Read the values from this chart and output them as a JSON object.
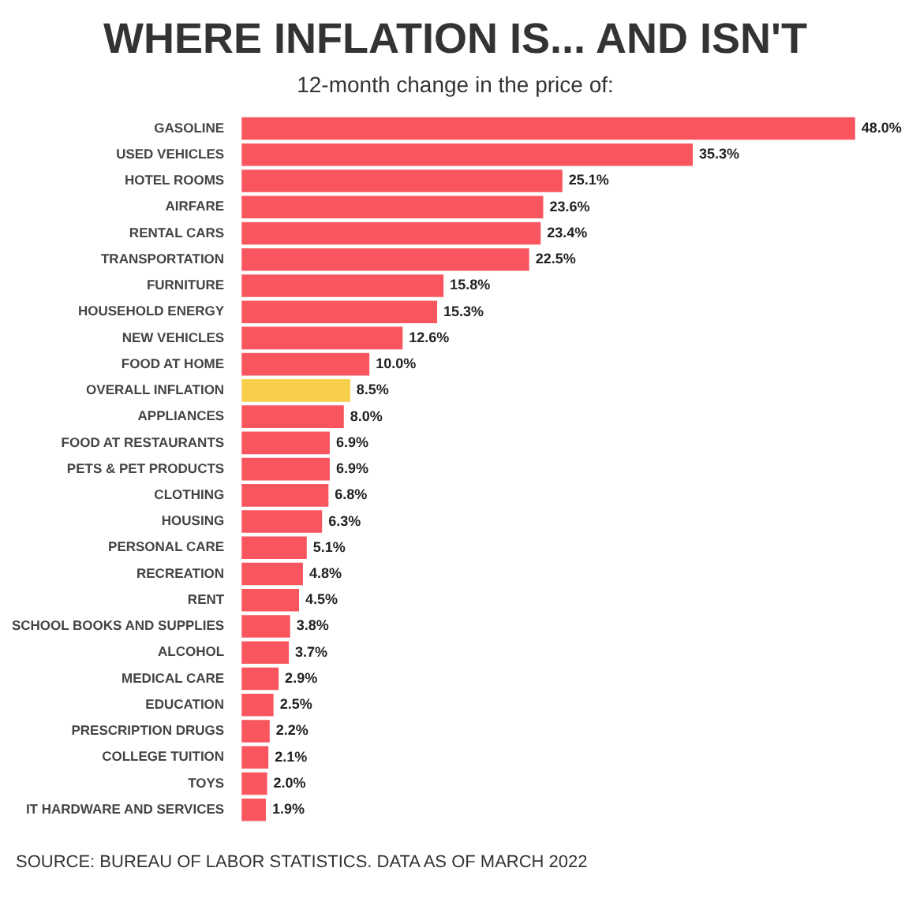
{
  "chart_data": {
    "type": "bar",
    "orientation": "horizontal",
    "title": "WHERE INFLATION IS... AND ISN'T",
    "subtitle": "12-month change in the price of:",
    "categories": [
      "GASOLINE",
      "USED VEHICLES",
      "HOTEL ROOMS",
      "AIRFARE",
      "RENTAL CARS",
      "TRANSPORTATION",
      "FURNITURE",
      "HOUSEHOLD ENERGY",
      "NEW VEHICLES",
      "FOOD AT HOME",
      "OVERALL INFLATION",
      "APPLIANCES",
      "FOOD AT RESTAURANTS",
      "PETS & PET PRODUCTS",
      "CLOTHING",
      "HOUSING",
      "PERSONAL CARE",
      "RECREATION",
      "RENT",
      "SCHOOL BOOKS AND SUPPLIES",
      "ALCOHOL",
      "MEDICAL CARE",
      "EDUCATION",
      "PRESCRIPTION DRUGS",
      "COLLEGE TUITION",
      "TOYS",
      "IT HARDWARE AND SERVICES"
    ],
    "values": [
      48.0,
      35.3,
      25.1,
      23.6,
      23.4,
      22.5,
      15.8,
      15.3,
      12.6,
      10.0,
      8.5,
      8.0,
      6.9,
      6.9,
      6.8,
      6.3,
      5.1,
      4.8,
      4.5,
      3.8,
      3.7,
      2.9,
      2.5,
      2.2,
      2.1,
      2.0,
      1.9
    ],
    "value_labels": [
      "48.0%",
      "35.3%",
      "25.1%",
      "23.6%",
      "23.4%",
      "22.5%",
      "15.8%",
      "15.3%",
      "12.6%",
      "10.0%",
      "8.5%",
      "8.0%",
      "6.9%",
      "6.9%",
      "6.8%",
      "6.3%",
      "5.1%",
      "4.8%",
      "4.5%",
      "3.8%",
      "3.7%",
      "2.9%",
      "2.5%",
      "2.2%",
      "2.1%",
      "2.0%",
      "1.9%"
    ],
    "colors": [
      "#f9555f",
      "#f9555f",
      "#f9555f",
      "#f9555f",
      "#f9555f",
      "#f9555f",
      "#f9555f",
      "#f9555f",
      "#f9555f",
      "#f9555f",
      "#f7cf4a",
      "#f9555f",
      "#f9555f",
      "#f9555f",
      "#f9555f",
      "#f9555f",
      "#f9555f",
      "#f9555f",
      "#f9555f",
      "#f9555f",
      "#f9555f",
      "#f9555f",
      "#f9555f",
      "#f9555f",
      "#f9555f",
      "#f9555f",
      "#f9555f"
    ],
    "annotations": [
      "SOURCE: BUREAU OF LABOR STATISTICS. DATA AS OF MARCH 2022"
    ]
  }
}
